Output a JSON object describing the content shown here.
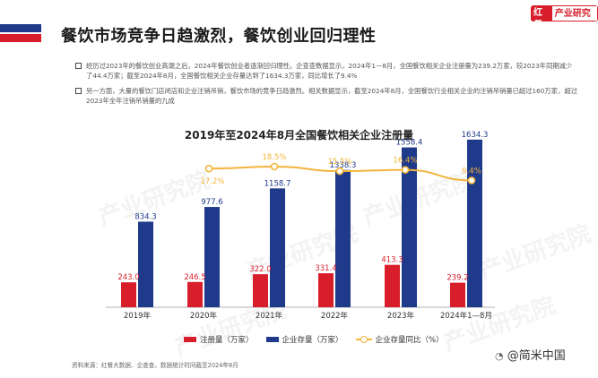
{
  "header": {
    "title": "餐饮市场竞争日趋激烈，餐饮创业回归理性"
  },
  "brand": {
    "part1": "红餐",
    "part2": "产业研究院"
  },
  "bullets": [
    "经历过2023年的餐饮创业高潮之后，2024年餐饮创业者逐渐回归理性。企查查数据显示，2024年1—8月，全国餐饮相关企业注册量为239.2万家，较2023年同期减少了44.4万家；截至2024年8月，全国餐饮相关企业存量达到了1634.3万家，同比增长了9.4%",
    "另一方面，大量的餐饮门店闭店和企业注销吊销，餐饮市场的竞争日趋激烈。相关数据显示，截至2024年8月，全国餐饮行业相关企业的注销吊销量已超过160万家，超过2023年全年注销吊销量的九成"
  ],
  "chart_data": {
    "type": "bar",
    "title": "2019年至2024年8月全国餐饮相关企业注册量",
    "categories": [
      "2019年",
      "2020年",
      "2021年",
      "2022年",
      "2023年",
      "2024年1—8月"
    ],
    "series": [
      {
        "name": "注册量（万家）",
        "type": "bar",
        "color": "#d81e2b",
        "values": [
          243.0,
          246.5,
          322.0,
          331.4,
          413.3,
          239.2
        ],
        "labels": [
          "243.0",
          "246.5",
          "322.0",
          "331.4",
          "413.3",
          "239.2"
        ]
      },
      {
        "name": "企业存量（万家）",
        "type": "bar",
        "color": "#1f3a8a",
        "values": [
          834.3,
          977.6,
          1158.7,
          1338.3,
          1558.4,
          1634.3
        ],
        "labels": [
          "834.3",
          "977.6",
          "1158.7",
          "1338.3",
          "1558.4",
          "1634.3"
        ]
      },
      {
        "name": "企业存量同比（%）",
        "type": "line",
        "color": "#f2b43b",
        "values": [
          null,
          17.2,
          18.5,
          15.5,
          16.4,
          9.4
        ],
        "labels": [
          "",
          "17.2%",
          "18.5%",
          "15.5%",
          "16.4%",
          "9.4%"
        ]
      }
    ],
    "legend_position": "bottom",
    "grid": false
  },
  "watermark": {
    "text": "产业研究院",
    "logo": "红餐"
  },
  "source": "资料来源：红餐大数据、企查查，数据统计时间截至2024年8月",
  "corner_mark": {
    "icon": "weibo-icon",
    "text": "@简米中国"
  }
}
